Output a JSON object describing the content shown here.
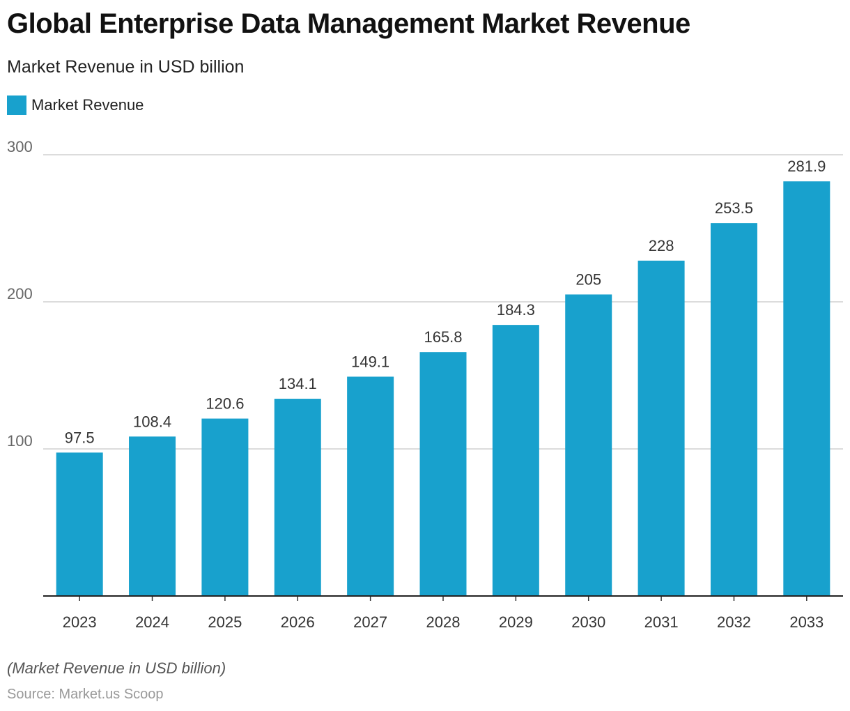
{
  "title": "Global Enterprise Data Management Market Revenue",
  "subtitle": "Market Revenue in USD billion",
  "footer_note": "(Market Revenue in USD billion)",
  "source": "Source: Market.us Scoop",
  "colors": {
    "bar": "#18a1cd"
  },
  "chart_data": {
    "type": "bar",
    "title": "Global Enterprise Data Management Market Revenue",
    "subtitle": "Market Revenue in USD billion",
    "legend": {
      "placement": "top-left",
      "entries": [
        "Market Revenue"
      ]
    },
    "categories": [
      "2023",
      "2024",
      "2025",
      "2026",
      "2027",
      "2028",
      "2029",
      "2030",
      "2031",
      "2032",
      "2033"
    ],
    "series": [
      {
        "name": "Market Revenue",
        "values": [
          97.5,
          108.4,
          120.6,
          134.1,
          149.1,
          165.8,
          184.3,
          205,
          228,
          253.5,
          281.9
        ]
      }
    ],
    "data_labels": [
      "97.5",
      "108.4",
      "120.6",
      "134.1",
      "149.1",
      "165.8",
      "184.3",
      "205",
      "228",
      "253.5",
      "281.9"
    ],
    "ylim": [
      0,
      300
    ],
    "yticks": [
      100,
      200,
      300
    ],
    "grid": true
  }
}
